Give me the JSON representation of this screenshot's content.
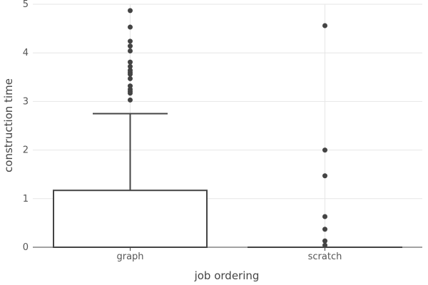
{
  "chart_data": {
    "type": "box",
    "xlabel": "job ordering",
    "ylabel": "construction time",
    "ylim": [
      0,
      5
    ],
    "yticks": [
      "0",
      "1",
      "2",
      "3",
      "4",
      "5"
    ],
    "grid": true,
    "categories": [
      "graph",
      "scratch"
    ],
    "boxes": [
      {
        "category": "graph",
        "min": 0,
        "q1": 0,
        "median": 0,
        "q3": 1.17,
        "whisker_high": 2.75,
        "outliers": [
          3.03,
          3.17,
          3.21,
          3.25,
          3.32,
          3.47,
          3.56,
          3.6,
          3.64,
          3.72,
          3.81,
          4.04,
          4.14,
          4.24,
          4.53,
          4.87
        ]
      },
      {
        "category": "scratch",
        "min": 0,
        "q1": 0,
        "median": 0,
        "q3": 0,
        "whisker_high": 0,
        "outliers": [
          0.04,
          0.13,
          0.37,
          0.63,
          1.47,
          2.0,
          4.56
        ]
      }
    ],
    "colors": {
      "box_stroke": "#444444",
      "box_fill": "#ffffff",
      "outlier": "#444444",
      "grid": "#e6e6e6"
    }
  }
}
